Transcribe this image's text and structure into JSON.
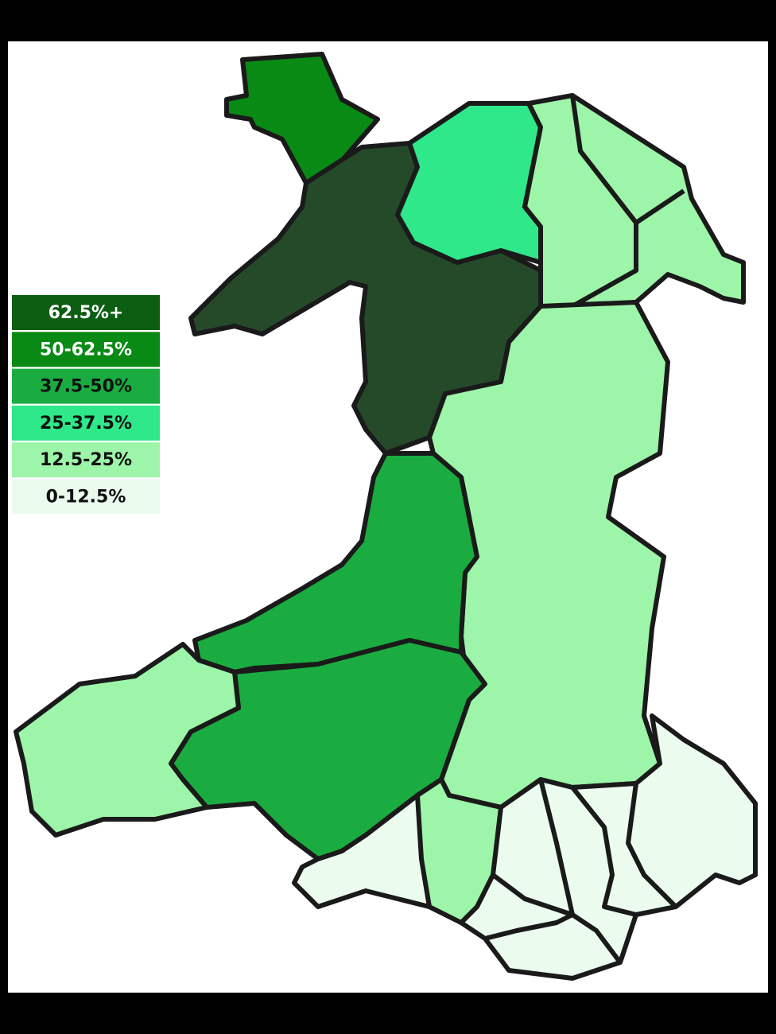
{
  "legend": {
    "items": [
      {
        "label": "62.5%+",
        "color": "#0b5e12"
      },
      {
        "label": "50-62.5%",
        "color": "#088a14"
      },
      {
        "label": "37.5-50%",
        "color": "#1aac40"
      },
      {
        "label": "25-37.5%",
        "color": "#2ee88a"
      },
      {
        "label": "12.5-25%",
        "color": "#9cf5a8"
      },
      {
        "label": "0-12.5%",
        "color": "#ebfcef"
      }
    ]
  }
}
